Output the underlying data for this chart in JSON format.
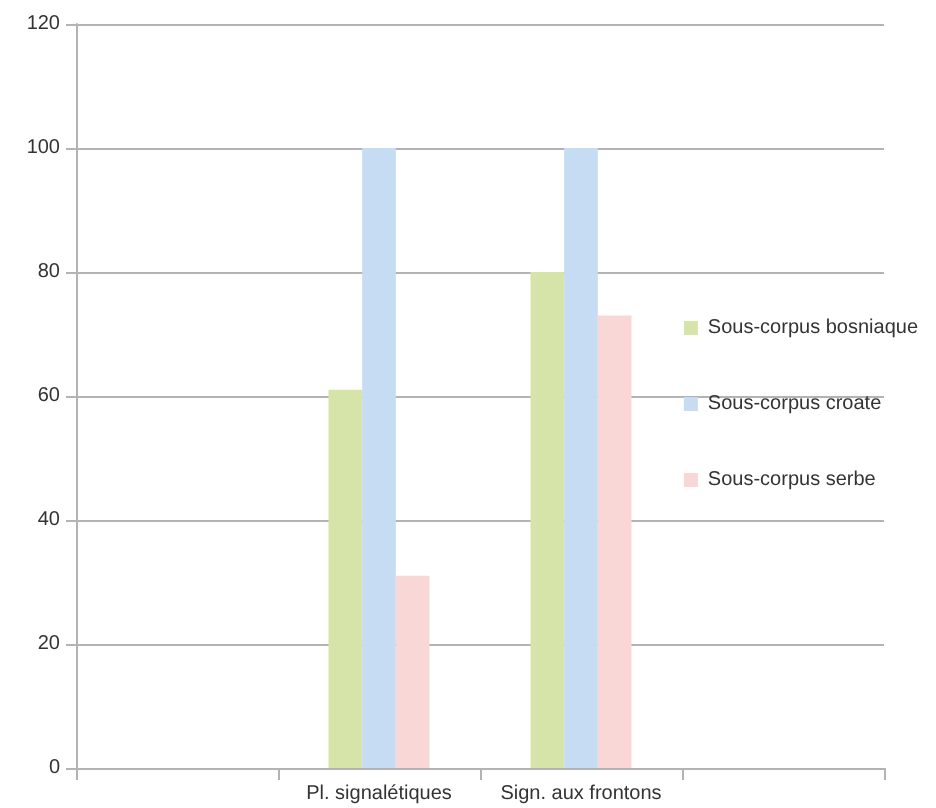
{
  "chart_data": {
    "type": "bar",
    "categories": [
      null,
      "Pl. signalétiques",
      "Sign. aux frontons",
      null
    ],
    "series": [
      {
        "name": "Sous-corpus bosniaque",
        "color": "#d7e4a9",
        "values": [
          null,
          61,
          80,
          null
        ]
      },
      {
        "name": "Sous-corpus croate",
        "color": "#c6dcf3",
        "values": [
          null,
          100,
          100,
          null
        ]
      },
      {
        "name": "Sous-corpus serbe",
        "color": "#f9d7d7",
        "values": [
          null,
          31,
          73,
          null
        ]
      }
    ],
    "ylim": [
      0,
      120
    ],
    "yticks": [
      0,
      20,
      40,
      60,
      80,
      100,
      120
    ],
    "grid": "y",
    "legend": "right"
  }
}
